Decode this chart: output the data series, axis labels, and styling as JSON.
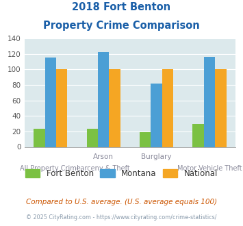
{
  "title_line1": "2018 Fort Benton",
  "title_line2": "Property Crime Comparison",
  "cat_labels_top": [
    "",
    "Arson",
    "",
    "Burglary"
  ],
  "cat_labels_bottom": [
    "All Property Crime",
    "Larceny & Theft",
    "",
    "Motor Vehicle Theft"
  ],
  "fort_benton": [
    23,
    23,
    19,
    30
  ],
  "montana": [
    115,
    122,
    82,
    116
  ],
  "national": [
    100,
    100,
    100,
    100
  ],
  "fort_benton_color": "#7bc143",
  "montana_color": "#4b9fd5",
  "national_color": "#f5a623",
  "ylim": [
    0,
    140
  ],
  "yticks": [
    0,
    20,
    40,
    60,
    80,
    100,
    120,
    140
  ],
  "plot_bg": "#dce9ec",
  "legend_labels": [
    "Fort Benton",
    "Montana",
    "National"
  ],
  "footnote1": "Compared to U.S. average. (U.S. average equals 100)",
  "footnote2": "© 2025 CityRating.com - https://www.cityrating.com/crime-statistics/",
  "title_color": "#1a5fa8",
  "footnote1_color": "#cc5500",
  "footnote2_color": "#8899aa",
  "label_color": "#888899"
}
